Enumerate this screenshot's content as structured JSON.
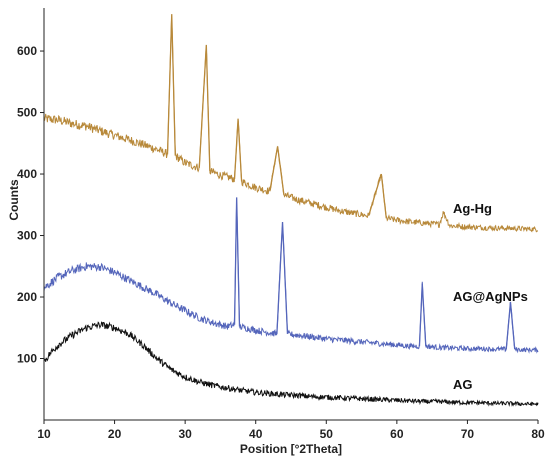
{
  "chart_data": {
    "type": "line",
    "title": "",
    "xlabel": "Position [°2Theta]",
    "ylabel": "Counts",
    "xlim": [
      10,
      80
    ],
    "ylim": [
      0,
      670
    ],
    "xticks": [
      10,
      20,
      30,
      40,
      50,
      60,
      70,
      80
    ],
    "yticks": [
      100,
      200,
      300,
      400,
      500,
      600
    ],
    "grid": false,
    "series": [
      {
        "name": "Ag-Hg",
        "color": "#b8893a",
        "points": [
          [
            10,
            490
          ],
          [
            12,
            488
          ],
          [
            14,
            482
          ],
          [
            16,
            478
          ],
          [
            18,
            470
          ],
          [
            20,
            463
          ],
          [
            22,
            456
          ],
          [
            24,
            448
          ],
          [
            26,
            440
          ],
          [
            27.5,
            432
          ],
          [
            28.1,
            660
          ],
          [
            28.6,
            430
          ],
          [
            30,
            418
          ],
          [
            32,
            410
          ],
          [
            33.0,
            610
          ],
          [
            33.5,
            405
          ],
          [
            35,
            398
          ],
          [
            37,
            392
          ],
          [
            37.5,
            490
          ],
          [
            38,
            388
          ],
          [
            40,
            378
          ],
          [
            42,
            372
          ],
          [
            43.1,
            445
          ],
          [
            44,
            366
          ],
          [
            46,
            358
          ],
          [
            48,
            352
          ],
          [
            50,
            346
          ],
          [
            52,
            340
          ],
          [
            54,
            336
          ],
          [
            56,
            332
          ],
          [
            57.8,
            400
          ],
          [
            58.5,
            328
          ],
          [
            60,
            325
          ],
          [
            62,
            322
          ],
          [
            64,
            320
          ],
          [
            66,
            318
          ],
          [
            66.6,
            338
          ],
          [
            67.5,
            316
          ],
          [
            70,
            314
          ],
          [
            72,
            313
          ],
          [
            75,
            312
          ],
          [
            78,
            311
          ],
          [
            80,
            310
          ]
        ]
      },
      {
        "name": "AG@AgNPs",
        "color": "#5566bb",
        "points": [
          [
            10,
            215
          ],
          [
            12,
            232
          ],
          [
            14,
            243
          ],
          [
            16,
            250
          ],
          [
            18,
            249
          ],
          [
            20,
            240
          ],
          [
            22,
            228
          ],
          [
            24,
            216
          ],
          [
            26,
            204
          ],
          [
            28,
            190
          ],
          [
            30,
            178
          ],
          [
            32,
            166
          ],
          [
            34,
            158
          ],
          [
            36,
            152
          ],
          [
            37.0,
            155
          ],
          [
            37.3,
            362
          ],
          [
            37.7,
            152
          ],
          [
            40,
            146
          ],
          [
            42,
            142
          ],
          [
            43.0,
            140
          ],
          [
            43.8,
            322
          ],
          [
            44.5,
            140
          ],
          [
            46,
            138
          ],
          [
            48,
            135
          ],
          [
            50,
            132
          ],
          [
            52,
            130
          ],
          [
            54,
            128
          ],
          [
            56,
            126
          ],
          [
            58,
            124
          ],
          [
            60,
            122
          ],
          [
            62,
            120
          ],
          [
            63.2,
            120
          ],
          [
            63.6,
            222
          ],
          [
            64.1,
            120
          ],
          [
            66,
            118
          ],
          [
            68,
            117
          ],
          [
            70,
            116
          ],
          [
            72,
            116
          ],
          [
            74,
            115
          ],
          [
            75.5,
            115
          ],
          [
            76.1,
            192
          ],
          [
            76.7,
            115
          ],
          [
            78,
            114
          ],
          [
            80,
            114
          ]
        ]
      },
      {
        "name": "AG",
        "color": "#111111",
        "points": [
          [
            10,
            95
          ],
          [
            11,
            110
          ],
          [
            12,
            122
          ],
          [
            14,
            138
          ],
          [
            16,
            150
          ],
          [
            18,
            155
          ],
          [
            20,
            150
          ],
          [
            22,
            140
          ],
          [
            24,
            122
          ],
          [
            26,
            100
          ],
          [
            28,
            82
          ],
          [
            30,
            70
          ],
          [
            32,
            62
          ],
          [
            34,
            56
          ],
          [
            36,
            52
          ],
          [
            38,
            48
          ],
          [
            40,
            45
          ],
          [
            42,
            43
          ],
          [
            44,
            41
          ],
          [
            46,
            40
          ],
          [
            48,
            38
          ],
          [
            50,
            37
          ],
          [
            52,
            36
          ],
          [
            54,
            35
          ],
          [
            56,
            34
          ],
          [
            58,
            33
          ],
          [
            60,
            32
          ],
          [
            62,
            31
          ],
          [
            64,
            30
          ],
          [
            66,
            30
          ],
          [
            68,
            29
          ],
          [
            70,
            28
          ],
          [
            72,
            28
          ],
          [
            74,
            27
          ],
          [
            76,
            27
          ],
          [
            78,
            26
          ],
          [
            80,
            26
          ]
        ]
      }
    ]
  }
}
